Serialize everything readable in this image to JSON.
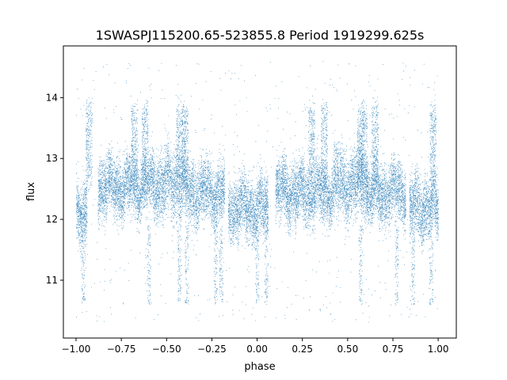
{
  "chart_data": {
    "type": "scatter",
    "title": "1SWASPJ115200.65-523855.8 Period 1919299.625s",
    "xlabel": "phase",
    "ylabel": "flux",
    "xlim": [
      -1.07,
      1.1
    ],
    "ylim": [
      10.05,
      14.85
    ],
    "xticks": [
      -1.0,
      -0.75,
      -0.5,
      -0.25,
      0.0,
      0.25,
      0.5,
      0.75,
      1.0
    ],
    "xtick_labels": [
      "−1.00",
      "−0.75",
      "−0.50",
      "−0.25",
      "0.00",
      "0.25",
      "0.50",
      "0.75",
      "1.00"
    ],
    "yticks": [
      11,
      12,
      13,
      14
    ],
    "ytick_labels": [
      "11",
      "12",
      "13",
      "14"
    ],
    "grid": false,
    "marker_color": "#1f77b4",
    "series": [
      {
        "description": "phase-folded light curve, point density clusters",
        "segments": [
          {
            "x": [
              -1.0,
              -0.94
            ],
            "y_center": 12.15,
            "spread": 0.35
          },
          {
            "x": [
              -0.88,
              -0.58
            ],
            "y_center": 12.55,
            "spread": 0.35
          },
          {
            "x": [
              -0.58,
              -0.4
            ],
            "y_center": 12.6,
            "spread": 0.4
          },
          {
            "x": [
              -0.4,
              -0.18
            ],
            "y_center": 12.45,
            "spread": 0.35
          },
          {
            "x": [
              -0.16,
              0.06
            ],
            "y_center": 12.2,
            "spread": 0.35
          },
          {
            "x": [
              0.1,
              0.42
            ],
            "y_center": 12.45,
            "spread": 0.35
          },
          {
            "x": [
              0.42,
              0.6
            ],
            "y_center": 12.6,
            "spread": 0.4
          },
          {
            "x": [
              0.6,
              0.82
            ],
            "y_center": 12.45,
            "spread": 0.35
          },
          {
            "x": [
              0.84,
              1.0
            ],
            "y_center": 12.2,
            "spread": 0.35
          }
        ],
        "flares": [
          -0.93,
          -0.68,
          -0.62,
          -0.43,
          -0.4,
          0.3,
          0.37,
          0.57,
          0.59,
          0.65,
          0.97
        ],
        "dips": [
          -0.96,
          -0.6,
          -0.43,
          -0.39,
          -0.23,
          -0.2,
          0.0,
          0.05,
          0.57,
          0.77,
          0.86,
          0.96
        ]
      }
    ]
  }
}
